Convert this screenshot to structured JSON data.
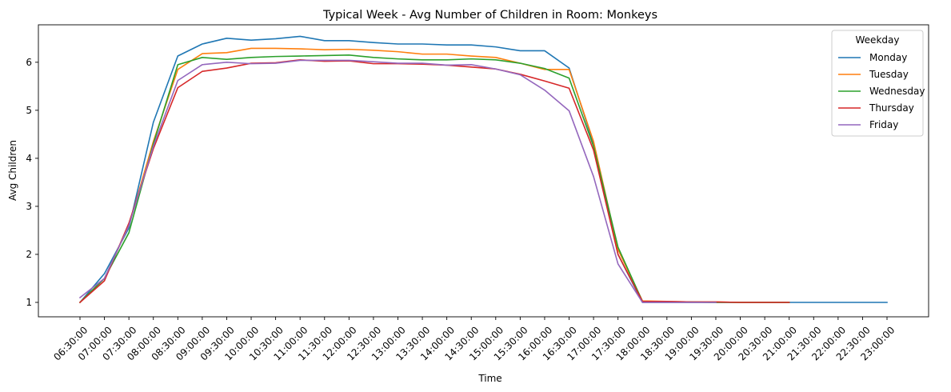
{
  "chart_data": {
    "type": "line",
    "title": "Typical Week - Avg Number of Children in Room: Monkeys",
    "xlabel": "Time",
    "ylabel": "Avg Children",
    "ylim": [
      0.7,
      6.78
    ],
    "yticks": [
      1,
      2,
      3,
      4,
      5,
      6
    ],
    "grid": false,
    "legend": {
      "title": "Weekday",
      "placement": "top-right"
    },
    "categories": [
      "06:30:00",
      "07:00:00",
      "07:30:00",
      "08:00:00",
      "08:30:00",
      "09:00:00",
      "09:30:00",
      "10:00:00",
      "10:30:00",
      "11:00:00",
      "11:30:00",
      "12:00:00",
      "12:30:00",
      "13:00:00",
      "13:30:00",
      "14:00:00",
      "14:30:00",
      "15:00:00",
      "15:30:00",
      "16:00:00",
      "16:30:00",
      "17:00:00",
      "17:30:00",
      "18:00:00",
      "18:30:00",
      "19:00:00",
      "19:30:00",
      "20:00:00",
      "20:30:00",
      "21:00:00",
      "21:30:00",
      "22:00:00",
      "22:30:00",
      "23:00:00"
    ],
    "series": [
      {
        "name": "Monday",
        "color": "#1f77b4",
        "values": [
          1.0,
          1.6,
          2.55,
          4.75,
          6.13,
          6.38,
          6.5,
          6.46,
          6.49,
          6.54,
          6.45,
          6.45,
          6.41,
          6.38,
          6.38,
          6.36,
          6.36,
          6.32,
          6.24,
          6.24,
          5.88,
          4.3,
          2.0,
          1.0,
          1.0,
          1.0,
          1.0,
          1.0,
          1.0,
          1.0,
          1.0,
          1.0,
          1.0,
          1.0
        ]
      },
      {
        "name": "Tuesday",
        "color": "#ff7f0e",
        "values": [
          1.0,
          1.5,
          2.6,
          4.35,
          5.85,
          6.18,
          6.2,
          6.29,
          6.29,
          6.28,
          6.26,
          6.27,
          6.25,
          6.22,
          6.17,
          6.17,
          6.13,
          6.1,
          5.98,
          5.85,
          5.85,
          4.35,
          2.1,
          1.03,
          1.02,
          1.01,
          1.01,
          1.0,
          1.0,
          1.0,
          null,
          null,
          null,
          null
        ]
      },
      {
        "name": "Wednesday",
        "color": "#2ca02c",
        "values": [
          1.0,
          1.5,
          2.45,
          4.3,
          5.95,
          6.1,
          6.06,
          6.1,
          6.12,
          6.13,
          6.14,
          6.15,
          6.1,
          6.07,
          6.05,
          6.05,
          6.07,
          6.05,
          5.98,
          5.87,
          5.67,
          4.25,
          2.15,
          1.02,
          1.01,
          1.01,
          1.0,
          1.0,
          1.0,
          1.0,
          null,
          null,
          null,
          null
        ]
      },
      {
        "name": "Thursday",
        "color": "#d62728",
        "values": [
          1.0,
          1.45,
          2.65,
          4.2,
          5.47,
          5.81,
          5.88,
          5.98,
          5.99,
          6.05,
          6.02,
          6.03,
          5.97,
          5.97,
          5.96,
          5.94,
          5.9,
          5.86,
          5.75,
          5.61,
          5.46,
          4.17,
          2.0,
          1.02,
          1.02,
          1.01,
          1.01,
          1.0,
          1.0,
          1.0,
          null,
          null,
          null,
          null
        ]
      },
      {
        "name": "Friday",
        "color": "#9467bd",
        "values": [
          1.1,
          1.5,
          2.6,
          4.25,
          5.62,
          5.95,
          6.0,
          5.97,
          5.98,
          6.04,
          6.04,
          6.04,
          6.01,
          5.98,
          5.98,
          5.94,
          5.95,
          5.86,
          5.74,
          5.42,
          4.99,
          3.62,
          1.8,
          1.0,
          1.0,
          1.0,
          1.0,
          null,
          null,
          null,
          null,
          null,
          null,
          null
        ]
      }
    ]
  }
}
